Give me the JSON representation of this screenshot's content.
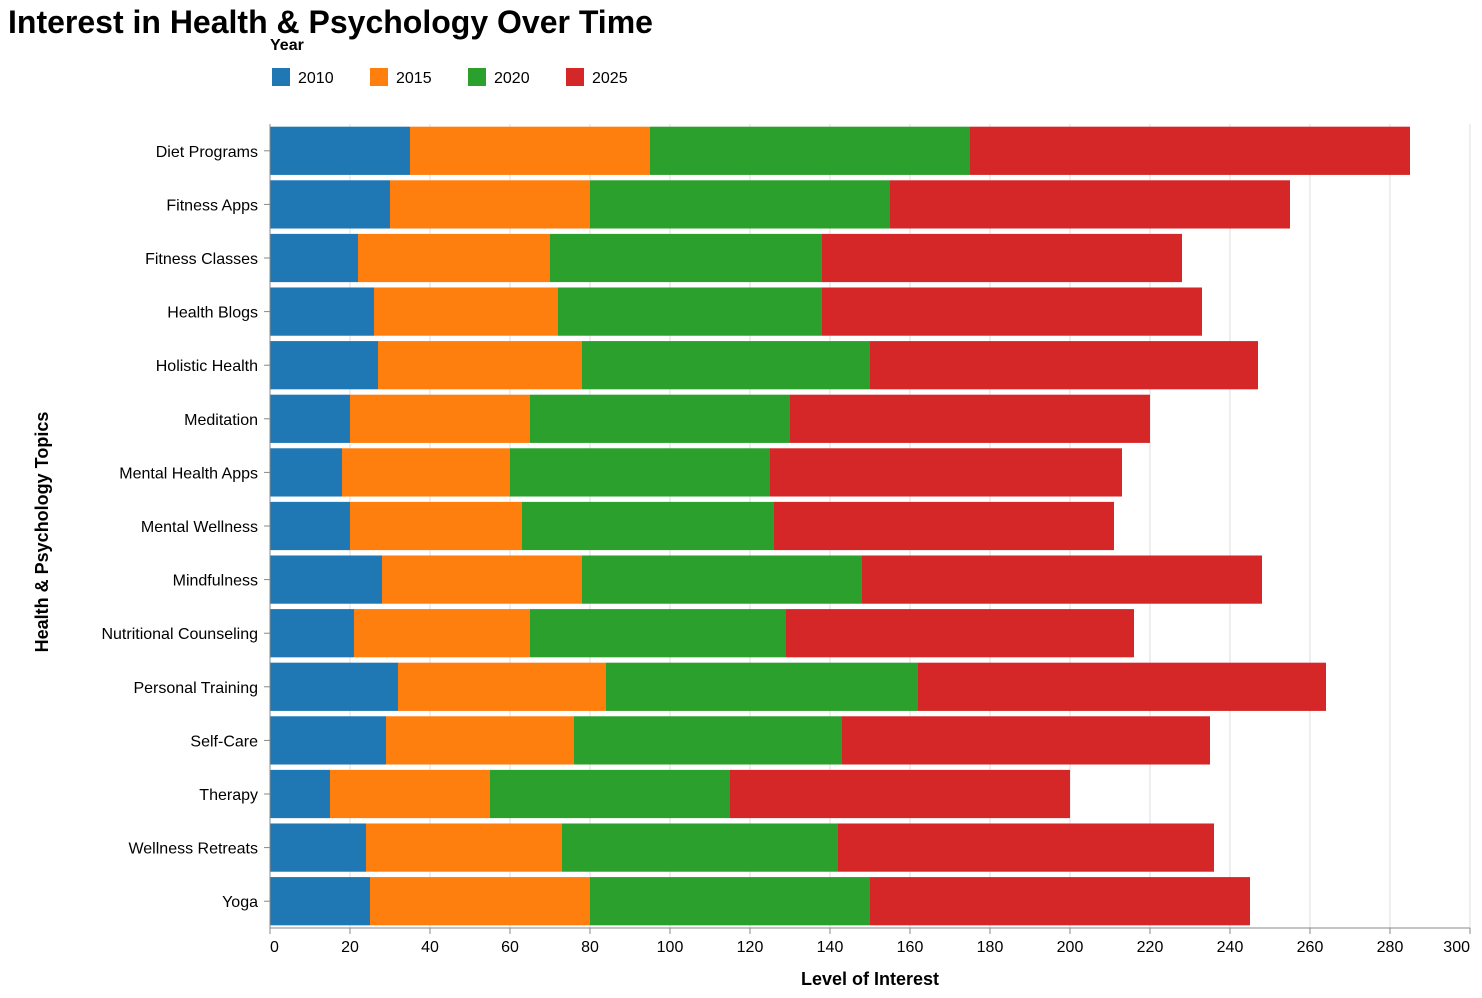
{
  "chart_data": {
    "type": "bar",
    "orientation": "horizontal",
    "stacked": true,
    "title": "Interest in Health & Psychology Over Time",
    "xlabel": "Level of Interest",
    "ylabel": "Health & Psychology Topics",
    "xlim": [
      0,
      300
    ],
    "xticks": [
      0,
      20,
      40,
      60,
      80,
      100,
      120,
      140,
      160,
      180,
      200,
      220,
      240,
      260,
      280,
      300
    ],
    "grid": true,
    "legend": {
      "title": "Year",
      "position": "top-left"
    },
    "categories": [
      "Diet Programs",
      "Fitness Apps",
      "Fitness Classes",
      "Health Blogs",
      "Holistic Health",
      "Meditation",
      "Mental Health Apps",
      "Mental Wellness",
      "Mindfulness",
      "Nutritional Counseling",
      "Personal Training",
      "Self-Care",
      "Therapy",
      "Wellness Retreats",
      "Yoga"
    ],
    "series": [
      {
        "name": "2010",
        "color": "#1f77b4",
        "values": [
          35,
          30,
          22,
          26,
          27,
          20,
          18,
          20,
          28,
          21,
          32,
          29,
          15,
          24,
          25
        ]
      },
      {
        "name": "2015",
        "color": "#ff7f0e",
        "values": [
          60,
          50,
          48,
          46,
          51,
          45,
          42,
          43,
          50,
          44,
          52,
          47,
          40,
          49,
          55
        ]
      },
      {
        "name": "2020",
        "color": "#2ca02c",
        "values": [
          80,
          75,
          68,
          66,
          72,
          65,
          65,
          63,
          70,
          64,
          78,
          67,
          60,
          69,
          70
        ]
      },
      {
        "name": "2025",
        "color": "#d62728",
        "values": [
          110,
          100,
          90,
          95,
          97,
          90,
          88,
          85,
          100,
          87,
          102,
          92,
          85,
          94,
          95
        ]
      }
    ]
  }
}
